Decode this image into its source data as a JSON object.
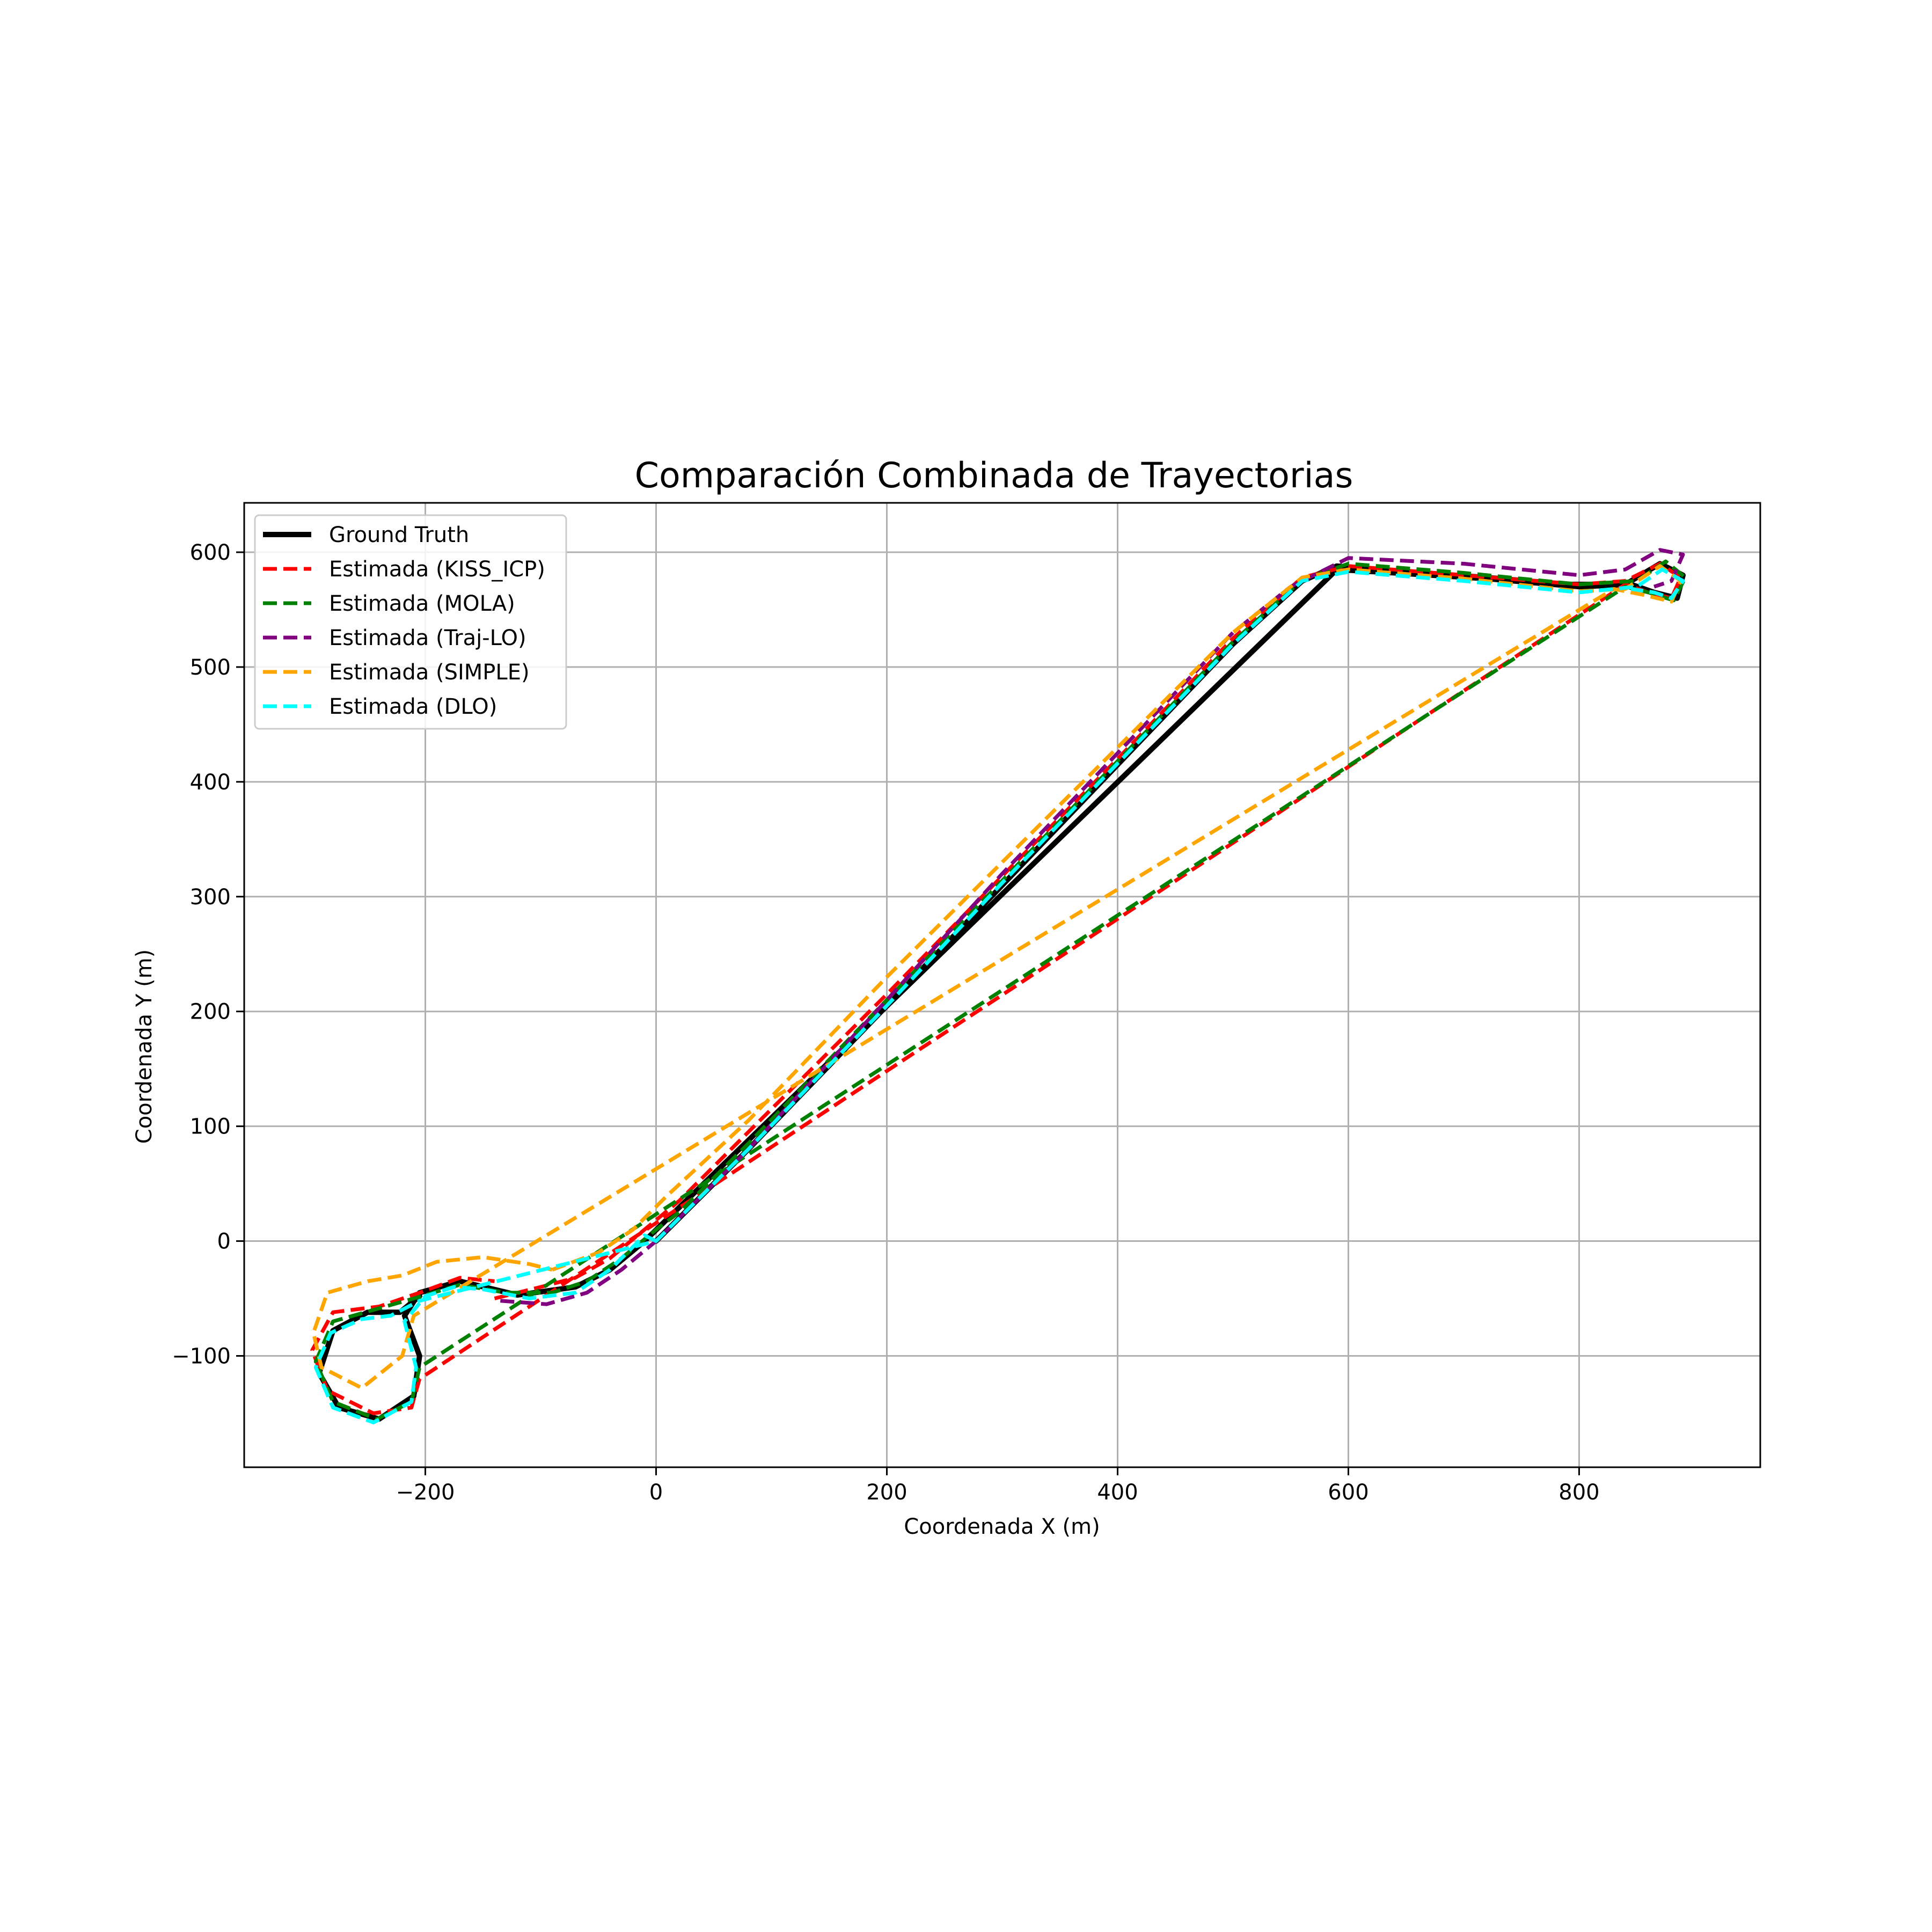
{
  "chart_data": {
    "type": "line",
    "title": "Comparación Combinada de Trayectorias",
    "xlabel": "Coordenada X (m)",
    "ylabel": "Coordenada Y (m)",
    "xlim": [
      -357,
      957
    ],
    "ylim": [
      -197,
      643
    ],
    "xticks": [
      -200,
      0,
      200,
      400,
      600,
      800
    ],
    "xtick_labels": [
      "−200",
      "0",
      "200",
      "400",
      "600",
      "800"
    ],
    "yticks": [
      -100,
      0,
      100,
      200,
      300,
      400,
      500,
      600
    ],
    "ytick_labels": [
      "−100",
      "0",
      "100",
      "200",
      "300",
      "400",
      "500",
      "600"
    ],
    "grid": true,
    "legend_position": "upper-left",
    "series": [
      {
        "name": "Ground Truth",
        "color": "#000000",
        "style": "solid",
        "points": [
          [
            0,
            0
          ],
          [
            20,
            20
          ],
          [
            80,
            80
          ],
          [
            200,
            205
          ],
          [
            300,
            310
          ],
          [
            400,
            415
          ],
          [
            500,
            520
          ],
          [
            560,
            575
          ],
          [
            590,
            588
          ],
          [
            650,
            583
          ],
          [
            720,
            578
          ],
          [
            790,
            572
          ],
          [
            840,
            572
          ],
          [
            870,
            590
          ],
          [
            890,
            580
          ],
          [
            885,
            560
          ],
          [
            865,
            565
          ],
          [
            845,
            572
          ],
          [
            800,
            570
          ],
          [
            720,
            577
          ],
          [
            640,
            582
          ],
          [
            590,
            585
          ],
          [
            -10,
            0
          ],
          [
            -40,
            -25
          ],
          [
            -70,
            -40
          ],
          [
            -120,
            -47
          ],
          [
            -170,
            -35
          ],
          [
            -205,
            -45
          ],
          [
            -218,
            -65
          ],
          [
            -205,
            -100
          ],
          [
            -210,
            -135
          ],
          [
            -240,
            -155
          ],
          [
            -275,
            -145
          ],
          [
            -292,
            -115
          ],
          [
            -280,
            -78
          ],
          [
            -250,
            -62
          ],
          [
            -222,
            -62
          ],
          [
            -205,
            -48
          ]
        ]
      },
      {
        "name": "Estimada (KISS_ICP)",
        "color": "#ff0000",
        "style": "dashed",
        "points": [
          [
            -140,
            -50
          ],
          [
            -100,
            -40
          ],
          [
            -70,
            -32
          ],
          [
            -40,
            -15
          ],
          [
            -10,
            10
          ],
          [
            20,
            35
          ],
          [
            80,
            95
          ],
          [
            200,
            215
          ],
          [
            300,
            318
          ],
          [
            400,
            420
          ],
          [
            500,
            525
          ],
          [
            560,
            578
          ],
          [
            600,
            588
          ],
          [
            700,
            580
          ],
          [
            800,
            572
          ],
          [
            840,
            575
          ],
          [
            870,
            590
          ],
          [
            888,
            578
          ],
          [
            880,
            560
          ],
          [
            860,
            565
          ],
          [
            840,
            572
          ],
          [
            -205,
            -120
          ],
          [
            -212,
            -145
          ],
          [
            -245,
            -150
          ],
          [
            -285,
            -130
          ],
          [
            -298,
            -95
          ],
          [
            -280,
            -62
          ],
          [
            -240,
            -57
          ],
          [
            -205,
            -45
          ],
          [
            -170,
            -32
          ],
          [
            -140,
            -35
          ]
        ]
      },
      {
        "name": "Estimada (MOLA)",
        "color": "#008000",
        "style": "dashed",
        "points": [
          [
            -130,
            -45
          ],
          [
            -90,
            -45
          ],
          [
            -60,
            -35
          ],
          [
            -30,
            -15
          ],
          [
            0,
            10
          ],
          [
            20,
            25
          ],
          [
            80,
            85
          ],
          [
            200,
            210
          ],
          [
            300,
            314
          ],
          [
            400,
            418
          ],
          [
            500,
            522
          ],
          [
            560,
            576
          ],
          [
            600,
            590
          ],
          [
            700,
            582
          ],
          [
            800,
            572
          ],
          [
            850,
            575
          ],
          [
            875,
            592
          ],
          [
            892,
            578
          ],
          [
            882,
            558
          ],
          [
            860,
            565
          ],
          [
            840,
            570
          ],
          [
            -205,
            -110
          ],
          [
            -212,
            -140
          ],
          [
            -242,
            -155
          ],
          [
            -280,
            -140
          ],
          [
            -295,
            -105
          ],
          [
            -280,
            -70
          ],
          [
            -245,
            -60
          ],
          [
            -210,
            -50
          ],
          [
            -170,
            -38
          ],
          [
            -130,
            -45
          ]
        ]
      },
      {
        "name": "Estimada (Traj-LO)",
        "color": "#800080",
        "style": "dashed",
        "points": [
          [
            -135,
            -52
          ],
          [
            -95,
            -55
          ],
          [
            -60,
            -45
          ],
          [
            -30,
            -25
          ],
          [
            0,
            0
          ],
          [
            30,
            30
          ],
          [
            80,
            80
          ],
          [
            200,
            210
          ],
          [
            300,
            320
          ],
          [
            400,
            425
          ],
          [
            500,
            530
          ],
          [
            550,
            570
          ],
          [
            600,
            595
          ],
          [
            700,
            590
          ],
          [
            800,
            580
          ],
          [
            840,
            585
          ],
          [
            870,
            602
          ],
          [
            890,
            598
          ],
          [
            880,
            575
          ],
          [
            865,
            570
          ]
        ]
      },
      {
        "name": "Estimada (SIMPLE)",
        "color": "#ffa500",
        "style": "dashed",
        "points": [
          [
            -90,
            -25
          ],
          [
            -50,
            -10
          ],
          [
            -20,
            10
          ],
          [
            10,
            40
          ],
          [
            80,
            105
          ],
          [
            200,
            230
          ],
          [
            300,
            330
          ],
          [
            400,
            430
          ],
          [
            500,
            530
          ],
          [
            560,
            578
          ],
          [
            600,
            585
          ],
          [
            700,
            577
          ],
          [
            800,
            566
          ],
          [
            840,
            568
          ],
          [
            870,
            588
          ],
          [
            888,
            575
          ],
          [
            880,
            557
          ],
          [
            855,
            563
          ],
          [
            830,
            568
          ],
          [
            -210,
            -65
          ],
          [
            -220,
            -100
          ],
          [
            -255,
            -128
          ],
          [
            -290,
            -110
          ],
          [
            -297,
            -80
          ],
          [
            -285,
            -45
          ],
          [
            -250,
            -35
          ],
          [
            -220,
            -30
          ],
          [
            -190,
            -18
          ],
          [
            -150,
            -14
          ],
          [
            -110,
            -20
          ],
          [
            -90,
            -25
          ]
        ]
      },
      {
        "name": "Estimada (DLO)",
        "color": "#00ffff",
        "style": "dashed",
        "points": [
          [
            0,
            0
          ],
          [
            -10,
            5
          ],
          [
            -40,
            -25
          ],
          [
            -70,
            -45
          ],
          [
            -110,
            -50
          ],
          [
            -150,
            -42
          ],
          [
            -175,
            -40
          ],
          [
            -200,
            -48
          ],
          [
            -218,
            -70
          ],
          [
            -208,
            -110
          ],
          [
            -212,
            -140
          ],
          [
            -245,
            -158
          ],
          [
            -280,
            -145
          ],
          [
            -295,
            -110
          ],
          [
            -282,
            -80
          ],
          [
            -255,
            -68
          ],
          [
            -230,
            -65
          ],
          [
            -205,
            -52
          ],
          [
            0,
            0
          ],
          [
            20,
            20
          ],
          [
            80,
            80
          ],
          [
            200,
            205
          ],
          [
            300,
            312
          ],
          [
            400,
            416
          ],
          [
            500,
            520
          ],
          [
            560,
            575
          ],
          [
            600,
            583
          ],
          [
            700,
            575
          ],
          [
            800,
            565
          ],
          [
            850,
            570
          ],
          [
            872,
            585
          ],
          [
            890,
            575
          ],
          [
            880,
            560
          ],
          [
            865,
            565
          ],
          [
            845,
            568
          ]
        ]
      }
    ]
  }
}
